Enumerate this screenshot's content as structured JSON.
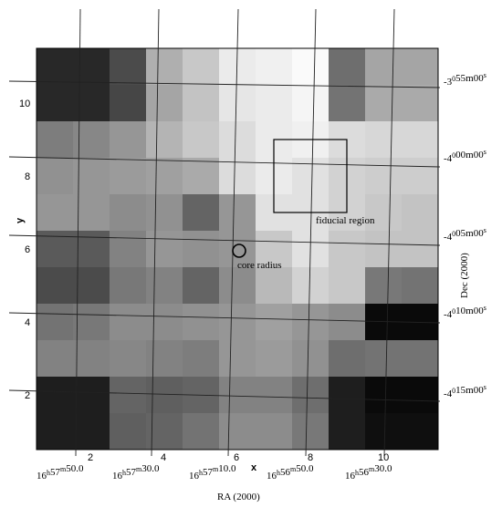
{
  "figure": {
    "x_axis_label": "x",
    "y_axis_label": "y",
    "x_ticks": [
      "2",
      "4",
      "6",
      "8",
      "10"
    ],
    "y_ticks": [
      "2",
      "4",
      "6",
      "8",
      "10"
    ],
    "ra_label": "RA (2000)",
    "dec_label": "Dec (2000)",
    "ra_ticks": [
      {
        "h": "16",
        "m": "57",
        "s": "50.0"
      },
      {
        "h": "16",
        "m": "57",
        "s": "30.0"
      },
      {
        "h": "16",
        "m": "57",
        "s": "10.0"
      },
      {
        "h": "16",
        "m": "56",
        "s": "50.0"
      },
      {
        "h": "16",
        "m": "56",
        "s": "30.0"
      }
    ],
    "dec_ticks": [
      {
        "d": "-3",
        "o": "0",
        "m": "55",
        "s": "00"
      },
      {
        "d": "-4",
        "o": "0",
        "m": "00",
        "s": "00"
      },
      {
        "d": "-4",
        "o": "0",
        "m": "05",
        "s": "00"
      },
      {
        "d": "-4",
        "o": "0",
        "m": "10",
        "s": "00"
      },
      {
        "d": "-4",
        "o": "0",
        "m": "15",
        "s": "00"
      }
    ],
    "annotations": {
      "fiducial": "fiducial region",
      "core": "core radius"
    },
    "grid_gray": [
      [
        40,
        40,
        75,
        175,
        200,
        235,
        240,
        250,
        110,
        165,
        165
      ],
      [
        40,
        40,
        70,
        165,
        195,
        230,
        235,
        245,
        115,
        170,
        170
      ],
      [
        125,
        135,
        150,
        180,
        200,
        220,
        235,
        240,
        220,
        215,
        215
      ],
      [
        145,
        150,
        155,
        160,
        170,
        220,
        235,
        225,
        210,
        205,
        205
      ],
      [
        150,
        150,
        140,
        145,
        100,
        150,
        225,
        225,
        210,
        200,
        195
      ],
      [
        90,
        90,
        130,
        150,
        145,
        150,
        200,
        225,
        200,
        195,
        195
      ],
      [
        75,
        75,
        120,
        130,
        100,
        140,
        185,
        210,
        200,
        120,
        115
      ],
      [
        115,
        120,
        140,
        140,
        145,
        150,
        160,
        150,
        140,
        10,
        10
      ],
      [
        130,
        130,
        135,
        130,
        125,
        150,
        155,
        145,
        110,
        115,
        115
      ],
      [
        30,
        30,
        100,
        95,
        100,
        130,
        130,
        110,
        30,
        10,
        10
      ],
      [
        30,
        30,
        95,
        100,
        115,
        140,
        140,
        120,
        30,
        15,
        15
      ]
    ]
  }
}
